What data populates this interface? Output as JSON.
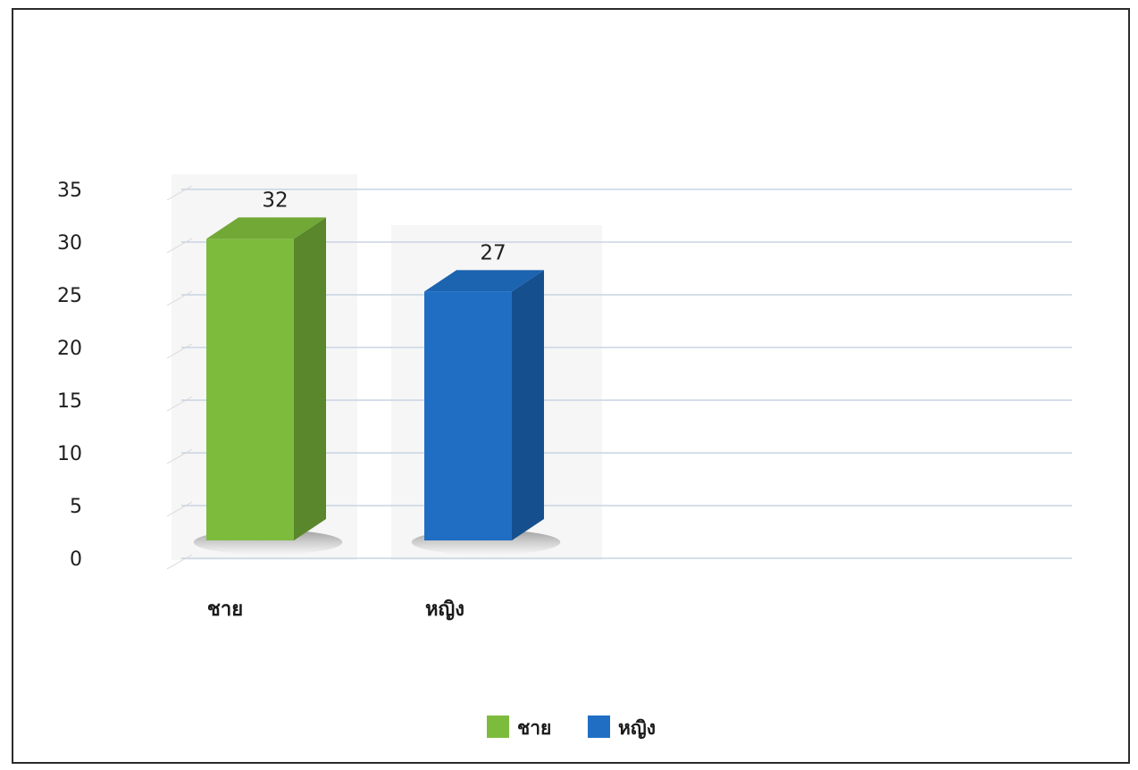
{
  "chart_data": {
    "type": "bar",
    "three_d": true,
    "categories": [
      "ชาย",
      "หญิง"
    ],
    "values": [
      32,
      27
    ],
    "colors": [
      "#7dbb3c",
      "#1f6ec4"
    ],
    "ylim": [
      0,
      35
    ],
    "yticks": [
      0,
      5,
      10,
      15,
      20,
      25,
      30,
      35
    ],
    "grid": true,
    "legend": {
      "position": "bottom",
      "entries": [
        {
          "label": "ชาย",
          "color": "#7dbb3c"
        },
        {
          "label": "หญิง",
          "color": "#1f6ec4"
        }
      ]
    }
  }
}
